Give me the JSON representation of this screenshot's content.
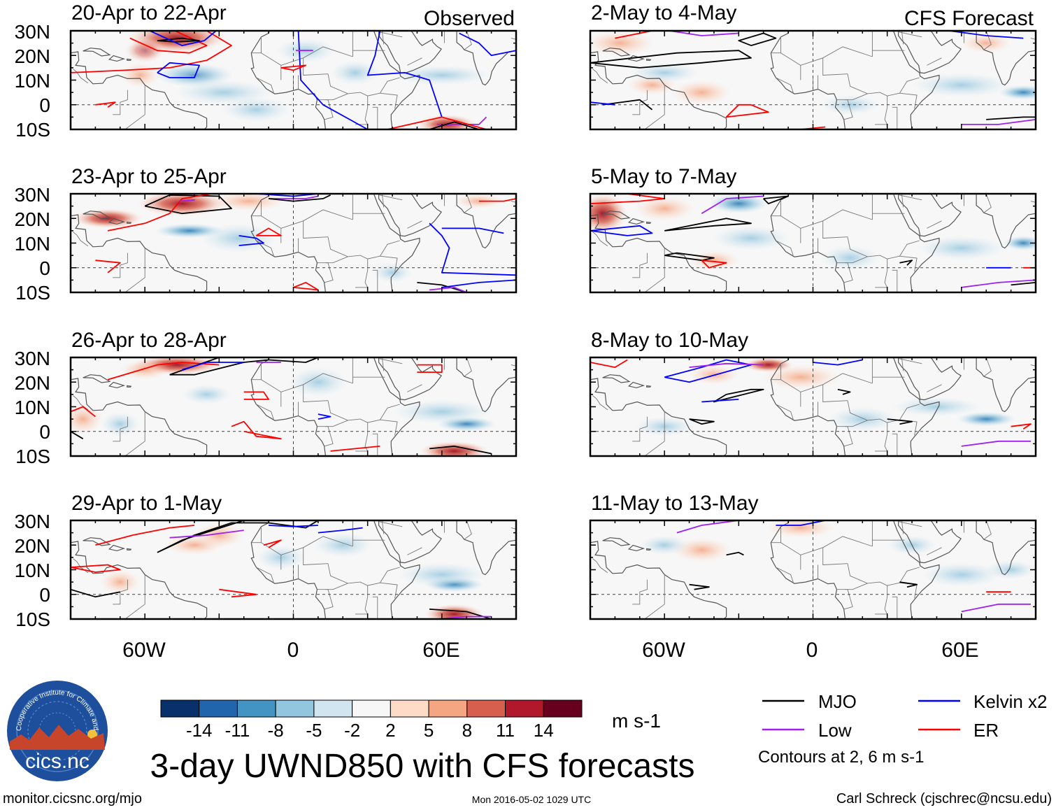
{
  "header": {
    "left_label": "Observed",
    "right_label": "CFS Forecast"
  },
  "columns": [
    {
      "name": "observed",
      "panels": [
        {
          "title": "20-Apr to 22-Apr"
        },
        {
          "title": "23-Apr to 25-Apr"
        },
        {
          "title": "26-Apr to 28-Apr"
        },
        {
          "title": "29-Apr to 1-May"
        }
      ]
    },
    {
      "name": "forecast",
      "panels": [
        {
          "title": "2-May to 4-May"
        },
        {
          "title": "5-May to 7-May"
        },
        {
          "title": "8-May to 10-May"
        },
        {
          "title": "11-May to 13-May"
        }
      ]
    }
  ],
  "lat_labels": [
    "30N",
    "20N",
    "10N",
    "0",
    "10S"
  ],
  "lon_labels": [
    "60W",
    "0",
    "60E"
  ],
  "colorbar": {
    "colors": [
      "#08306b",
      "#2166ac",
      "#4393c3",
      "#92c5de",
      "#d1e5f0",
      "#f7f7f7",
      "#fddbc7",
      "#f4a582",
      "#d6604d",
      "#b2182b",
      "#67001f"
    ],
    "ticks": [
      "-14",
      "-11",
      "-8",
      "-5",
      "-2",
      "2",
      "5",
      "8",
      "11",
      "14"
    ],
    "units": "m s-1"
  },
  "legend": {
    "items": [
      {
        "label": "MJO",
        "color": "#000000"
      },
      {
        "label": "Kelvin x2",
        "color": "#0000ff"
      },
      {
        "label": "Low",
        "color": "#a020f0"
      },
      {
        "label": "ER",
        "color": "#ff0000"
      }
    ],
    "note": "Contours at 2, 6 m s-1"
  },
  "title": "3-day UWND850 with CFS forecasts",
  "logo_text": "cics.nc",
  "logo_ring_text": "Cooperative Institute for Climate and Satellites",
  "footer": {
    "url": "monitor.cicsnc.org/mjo",
    "timestamp": "Mon 2016-05-02 1029 UTC",
    "credit": "Carl Schreck (cjschrec@ncsu.edu)"
  }
}
